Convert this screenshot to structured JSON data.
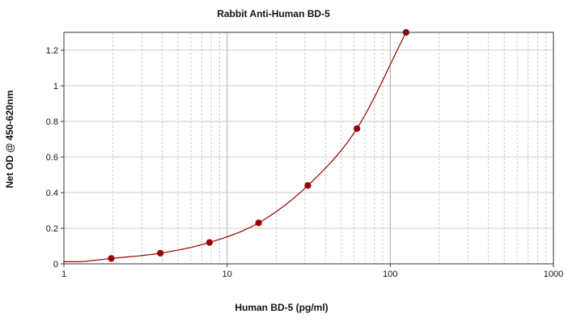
{
  "chart_data": {
    "type": "scatter",
    "title": "Rabbit Anti-Human BD-5",
    "xlabel": "Human BD-5 (pg/ml)",
    "ylabel": "Net OD @ 450-620nm",
    "x_scale": "log",
    "xlim": [
      1,
      1000
    ],
    "ylim": [
      0,
      1.3
    ],
    "x_ticks": [
      {
        "value": 1,
        "label": "1"
      },
      {
        "value": 10,
        "label": "10"
      },
      {
        "value": 100,
        "label": "100"
      },
      {
        "value": 1000,
        "label": "1000"
      }
    ],
    "y_ticks": [
      {
        "value": 0,
        "label": "0"
      },
      {
        "value": 0.2,
        "label": "0.2"
      },
      {
        "value": 0.4,
        "label": "0.4"
      },
      {
        "value": 0.6,
        "label": "0.6"
      },
      {
        "value": 0.8,
        "label": "0.8"
      },
      {
        "value": 1,
        "label": "1"
      },
      {
        "value": 1.2,
        "label": "1.2"
      }
    ],
    "grid": true,
    "series": [
      {
        "x": [
          1.95,
          3.9,
          7.8,
          15.6,
          31.25,
          62.5,
          125
        ],
        "y": [
          0.03,
          0.06,
          0.12,
          0.23,
          0.44,
          0.76,
          1.3
        ],
        "color": "#990000",
        "fit_curve": true
      }
    ]
  }
}
